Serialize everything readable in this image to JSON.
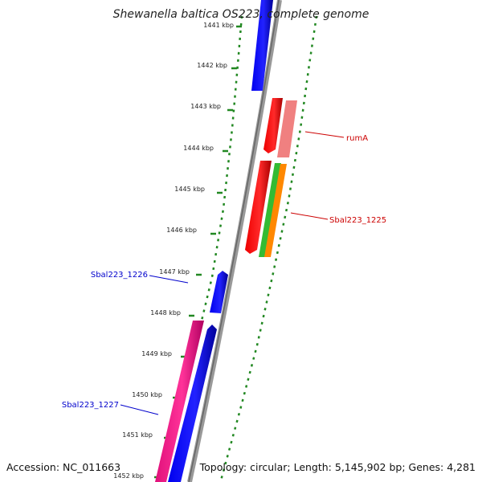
{
  "title": "Shewanella baltica OS223, complete genome",
  "accession": "Accession: NC_011663",
  "summary": "Topology: circular; Length: 5,145,902 bp; Genes: 4,281",
  "ticks": [
    "1441 kbp",
    "1442 kbp",
    "1443 kbp",
    "1444 kbp",
    "1445 kbp",
    "1446 kbp",
    "1447 kbp",
    "1448 kbp",
    "1449 kbp",
    "1450 kbp",
    "1451 kbp",
    "1452 kbp"
  ],
  "gene_labels": {
    "rumA": "rumA",
    "sbal1225": "Sbal223_1225",
    "sbal1226": "Sbal223_1226",
    "sbal1227": "Sbal223_1227"
  },
  "colors": {
    "forward_blue": "#0000ee",
    "reverse_red": "#ff0000",
    "pink_light": "#f08080",
    "green": "#33bb33",
    "orange": "#ff8800",
    "magenta": "#ff1493",
    "backbone": "#888888",
    "dots": "#228822",
    "label_red": "#cc0000",
    "label_blue": "#0000cc"
  }
}
